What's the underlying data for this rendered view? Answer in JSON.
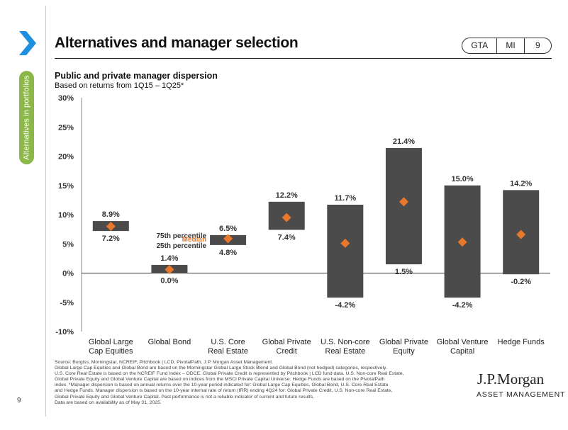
{
  "header": {
    "title": "Alternatives and manager selection",
    "nav": [
      "GTA",
      "MI",
      "9"
    ]
  },
  "sidebar": {
    "section_label": "Alternatives in portfolios",
    "page_number": "9"
  },
  "chart_header": {
    "title": "Public and private manager dispersion",
    "subtitle": "Based on returns from 1Q15 – 1Q25*"
  },
  "legend_labels": {
    "p75": "75th percentile",
    "median": "Median",
    "p25": "25th percentile"
  },
  "colors": {
    "bar": "#4b4b4b",
    "median": "#e8782a",
    "accent_green": "#8cb84a",
    "chevron": "#1f8fe0"
  },
  "chart_data": {
    "type": "bar",
    "title": "Public and private manager dispersion",
    "subtitle": "Based on returns from 1Q15 – 1Q25*",
    "y_ticks": [
      "30%",
      "25%",
      "20%",
      "15%",
      "10%",
      "5%",
      "0%",
      "-5%",
      "-10%"
    ],
    "ylim": [
      -10,
      30
    ],
    "categories": [
      [
        "Global Large",
        "Cap Equities"
      ],
      [
        "Global Bond"
      ],
      [
        "U.S. Core",
        "Real Estate"
      ],
      [
        "Global Private",
        "Credit"
      ],
      [
        "U.S. Non-core",
        "Real Estate"
      ],
      [
        "Global Private",
        "Equity"
      ],
      [
        "Global Venture",
        "Capital"
      ],
      [
        "Hedge Funds"
      ]
    ],
    "p75": [
      8.9,
      1.4,
      6.5,
      12.2,
      11.7,
      21.4,
      15.0,
      14.2
    ],
    "p25": [
      7.2,
      0.0,
      4.8,
      7.4,
      -4.2,
      1.5,
      -4.2,
      -0.2
    ],
    "median": [
      8.0,
      0.6,
      5.9,
      9.5,
      5.1,
      12.2,
      5.3,
      6.6
    ],
    "p75_labels": [
      "8.9%",
      "1.4%",
      "6.5%",
      "12.2%",
      "11.7%",
      "21.4%",
      "15.0%",
      "14.2%"
    ],
    "p25_labels": [
      "7.2%",
      "0.0%",
      "4.8%",
      "7.4%",
      "-4.2%",
      "1.5%",
      "-4.2%",
      "-0.2%"
    ]
  },
  "source_lines": [
    "Source: Burgiss, Morningstar, NCREIF, Pitchbook | LCD, PivotalPath, J.P. Morgan Asset Management.",
    "Global Large Cap Equities and Global Bond are based on the Morningstar Global Large Stock Blend and Global Bond (not hedged) categories, respectively.",
    "U.S. Core Real Estate is based on the NCREIF Fund Index – ODCE. Global Private Credit is represented by Pitchbook | LCD fund data. U.S. Non-core Real Estate,",
    "Global Private Equity and Global Venture Capital are based on indices from the MSCI Private Capital Universe. Hedge Funds are based on the PivotalPath",
    "index. *Manager dispersion is based on annual returns over the 10-year period indicated for: Global Large Cap Equities, Global Bond, U.S. Core Real Estate",
    "and Hedge Funds. Manager dispersion is based on the 10-year internal rate of return (IRR) ending 4Q24 for: Global Private Credit, U.S. Non-core Real Estate,",
    "Global Private Equity and Global Venture Capital. Past performance is not a reliable indicator of current and future results.",
    "Data are based on availability as of May 31, 2025."
  ],
  "logo": {
    "name": "J.P.Morgan",
    "sub": "ASSET MANAGEMENT"
  }
}
